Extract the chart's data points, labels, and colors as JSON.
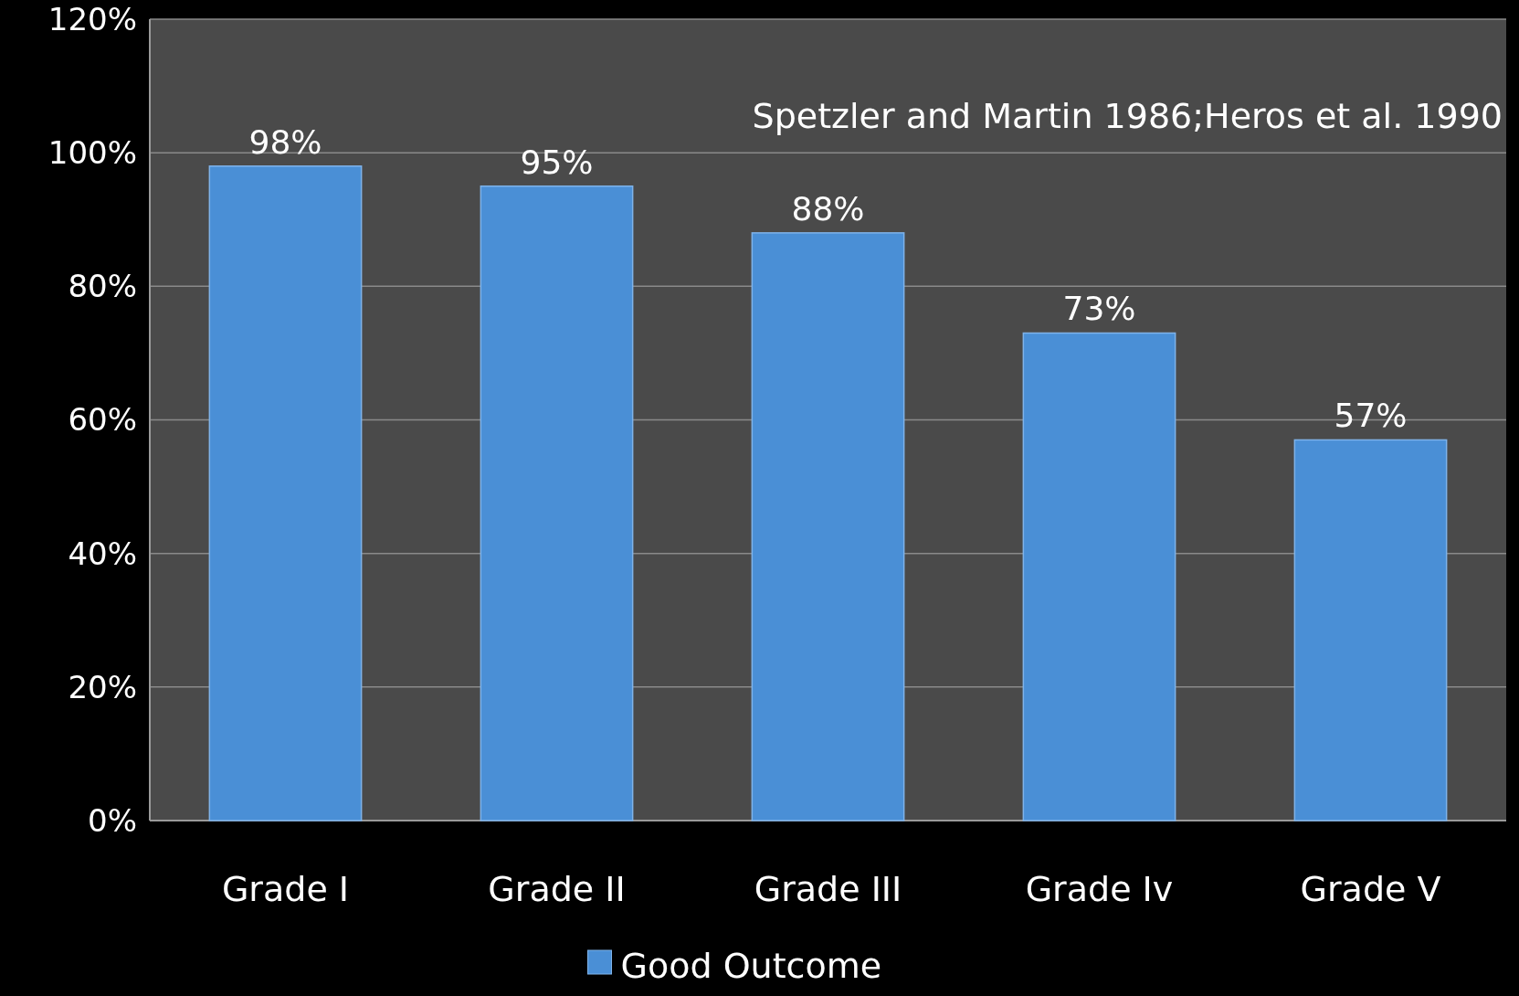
{
  "chart_data": {
    "type": "bar",
    "categories": [
      "Grade I",
      "Grade II",
      "Grade III",
      "Grade Iv",
      "Grade V"
    ],
    "series": [
      {
        "name": "Good Outcome",
        "color": "#4a8fd6",
        "values": [
          98,
          95,
          88,
          73,
          57
        ]
      }
    ],
    "value_labels": [
      "98%",
      "95%",
      "88%",
      "73%",
      "57%"
    ],
    "ylim": [
      0,
      120
    ],
    "yticks": [
      {
        "value": 0,
        "label": "0%"
      },
      {
        "value": 20,
        "label": "20%"
      },
      {
        "value": 40,
        "label": "40%"
      },
      {
        "value": 60,
        "label": "60%"
      },
      {
        "value": 80,
        "label": "80%"
      },
      {
        "value": 100,
        "label": "100%"
      },
      {
        "value": 120,
        "label": "120%"
      }
    ],
    "grid": "y",
    "legend": "bottom",
    "annotations": [
      "Spetzler and Martin 1986;Heros et al. 1990"
    ]
  }
}
